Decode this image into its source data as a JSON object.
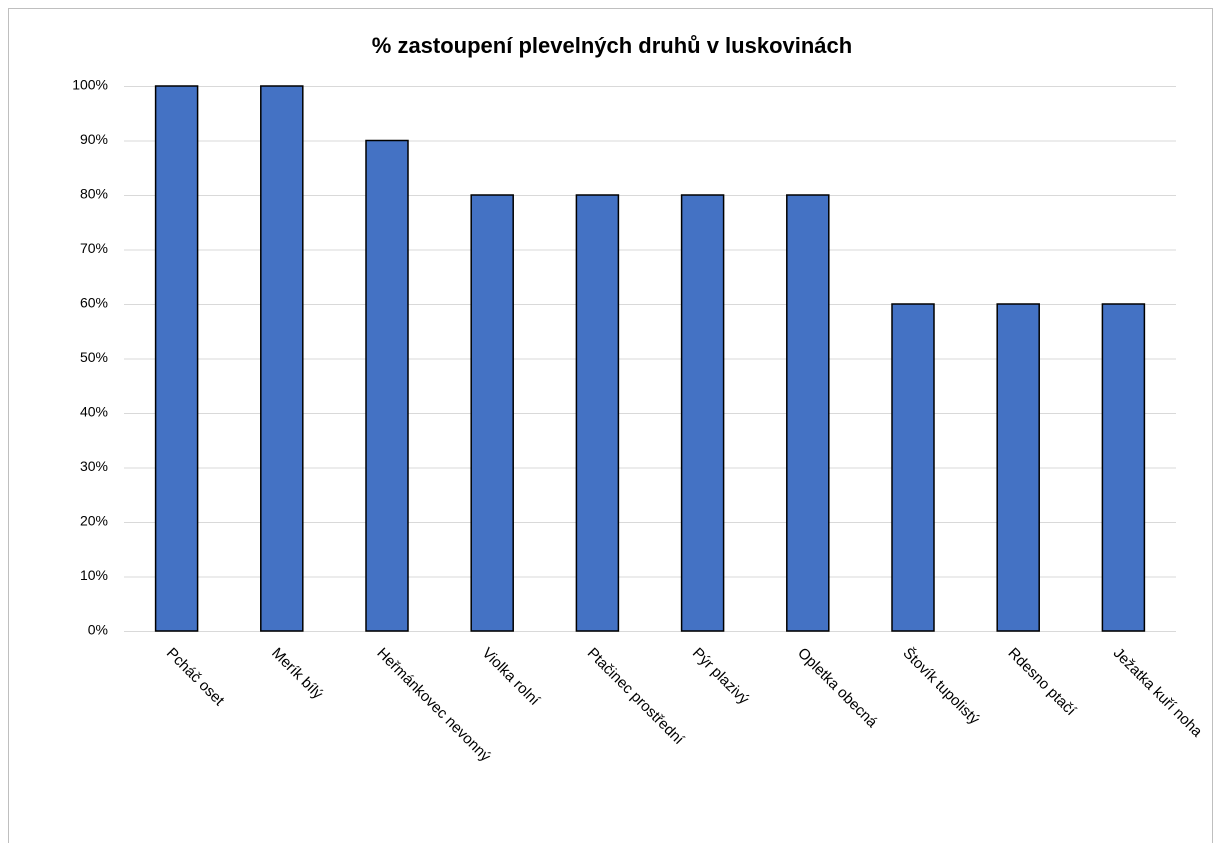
{
  "chart_data": {
    "type": "bar",
    "title": "% zastoupení plevelných druhů v luskovinách",
    "categories": [
      "Pcháč oset",
      "Merík bílý",
      "Heřmánkovec nevonný",
      "Violka rolní",
      "Ptačinec prostřední",
      "Pýr plazivý",
      "Opletka obecná",
      "Štovík tupolistý",
      "Rdesno ptačí",
      "Ježatka kuří noha"
    ],
    "values": [
      100,
      100,
      90,
      80,
      80,
      80,
      80,
      60,
      60,
      60
    ],
    "color": "#4472c4",
    "ylim": [
      0,
      100
    ],
    "yticks": [
      {
        "value": 0,
        "label": "0%"
      },
      {
        "value": 10,
        "label": "10%"
      },
      {
        "value": 20,
        "label": "20%"
      },
      {
        "value": 30,
        "label": "30%"
      },
      {
        "value": 40,
        "label": "40%"
      },
      {
        "value": 50,
        "label": "50%"
      },
      {
        "value": 60,
        "label": "60%"
      },
      {
        "value": 70,
        "label": "70%"
      },
      {
        "value": 80,
        "label": "80%"
      },
      {
        "value": 90,
        "label": "90%"
      },
      {
        "value": 100,
        "label": "100%"
      }
    ],
    "grid": true
  }
}
